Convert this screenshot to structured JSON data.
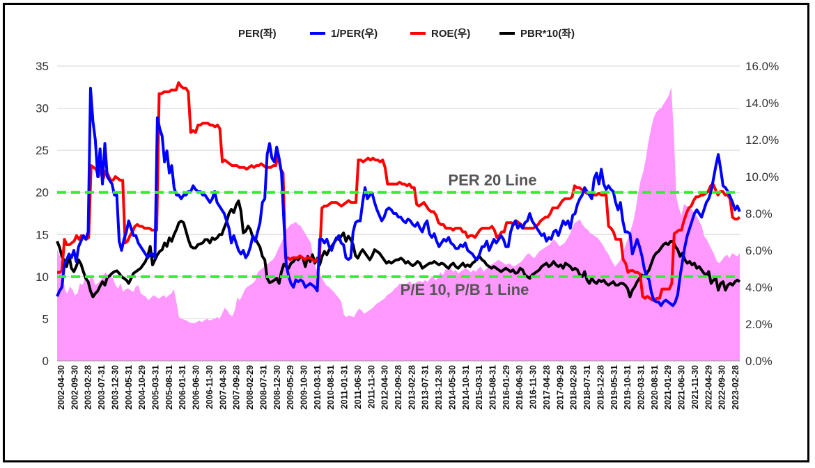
{
  "chart_data": {
    "type": "line",
    "legend_position": "top",
    "grid": "horizontal",
    "y_left": {
      "min": 0,
      "max": 35,
      "ticks": [
        0,
        5,
        10,
        15,
        20,
        25,
        30,
        35
      ]
    },
    "y_right": {
      "min": 0,
      "max": 16,
      "ticks": [
        "0.0%",
        "2.0%",
        "4.0%",
        "6.0%",
        "8.0%",
        "10.0%",
        "12.0%",
        "14.0%",
        "16.0%"
      ]
    },
    "x_tick_labels": [
      "2002-04-30",
      "2002-09-30",
      "2003-02-28",
      "2003-07-31",
      "2003-12-30",
      "2004-05-31",
      "2004-10-29",
      "2005-03-31",
      "2005-08-31",
      "2006-01-31",
      "2006-06-30",
      "2006-11-30",
      "2007-04-30",
      "2007-09-28",
      "2008-02-29",
      "2008-07-31",
      "2008-12-30",
      "2009-05-29",
      "2009-10-30",
      "2010-03-31",
      "2010-08-31",
      "2011-01-31",
      "2011-06-30",
      "2011-11-30",
      "2012-04-30",
      "2012-09-28",
      "2013-02-28",
      "2013-07-31",
      "2013-12-30",
      "2014-05-30",
      "2014-10-31",
      "2015-03-31",
      "2015-08-31",
      "2016-01-29",
      "2016-06-30",
      "2016-11-30",
      "2017-04-28",
      "2017-09-29",
      "2018-02-28",
      "2018-07-31",
      "2018-12-28",
      "2019-05-31",
      "2019-10-31",
      "2020-03-31",
      "2020-08-31",
      "2021-01-29",
      "2021-06-30",
      "2021-11-30",
      "2022-04-29",
      "2022-09-30",
      "2023-02-28"
    ],
    "series": [
      {
        "name": "PER(좌)",
        "axis": "left",
        "style": "area",
        "color": "#ff99ff",
        "values": [
          13.2,
          12.5,
          11.5,
          8.5,
          8.0,
          8.8,
          8.5,
          7.8,
          8.0,
          9.2,
          9.0,
          9.8,
          9.0,
          9.8,
          10.0,
          9.0,
          9.2,
          9.5,
          10.0,
          10.5,
          10.2,
          10.0,
          9.8,
          9.0,
          8.6,
          9.2,
          8.2,
          8.5,
          8.6,
          8.4,
          8.2,
          8.8,
          9.0,
          8.0,
          7.8,
          7.6,
          7.2,
          7.5,
          7.8,
          7.6,
          7.4,
          7.6,
          7.8,
          7.5,
          7.8,
          8.0,
          8.5,
          7.0,
          5.2,
          5.0,
          4.9,
          4.8,
          4.6,
          4.5,
          4.5,
          4.6,
          4.8,
          4.6,
          4.8,
          5.0,
          4.8,
          4.9,
          5.0,
          5.2,
          5.0,
          5.6,
          6.3,
          6.0,
          5.5,
          5.3,
          6.0,
          7.5,
          7.2,
          7.8,
          8.5,
          8.8,
          9.0,
          9.2,
          9.5,
          10.5,
          10.8,
          11.0,
          11.3,
          11.5,
          11.8,
          12.0,
          12.5,
          13.2,
          13.8,
          14.5,
          15.5,
          15.8,
          16.2,
          16.3,
          16.5,
          16.2,
          16.0,
          15.5,
          15.0,
          14.5,
          14.0,
          12.0,
          11.0,
          10.5,
          10.0,
          9.5,
          9.0,
          8.8,
          8.5,
          8.2,
          7.8,
          7.5,
          7.0,
          5.5,
          5.2,
          5.4,
          5.3,
          5.2,
          5.8,
          6.2,
          6.0,
          5.6,
          5.8,
          6.0,
          6.2,
          6.5,
          6.8,
          7.0,
          7.2,
          7.4,
          7.8,
          8.0,
          8.2,
          8.6,
          8.8,
          9.2,
          9.0,
          8.8,
          9.2,
          9.5,
          9.0,
          9.2,
          9.4,
          9.5,
          9.3,
          9.6,
          9.4,
          9.8,
          10.0,
          9.6,
          9.8,
          10.5,
          10.2,
          10.8,
          11.0,
          11.0,
          10.6,
          10.8,
          10.4,
          10.6,
          10.8,
          11.0,
          10.8,
          10.5,
          10.8,
          10.6,
          11.0,
          11.2,
          10.6,
          10.9,
          11.2,
          11.4,
          11.6,
          11.8,
          12.0,
          11.8,
          11.6,
          11.4,
          11.6,
          11.4,
          11.2,
          11.4,
          11.6,
          11.8,
          12.2,
          12.6,
          12.8,
          12.4,
          12.2,
          12.6,
          13.0,
          13.2,
          13.4,
          13.6,
          13.8,
          14.2,
          14.4,
          14.0,
          13.6,
          13.8,
          14.0,
          14.5,
          15.0,
          15.8,
          16.4,
          16.6,
          16.8,
          16.2,
          15.8,
          15.6,
          15.2,
          15.0,
          14.8,
          14.6,
          14.2,
          13.8,
          13.2,
          12.8,
          12.2,
          11.6,
          11.2,
          11.6,
          12.0,
          12.8,
          13.8,
          14.6,
          15.5,
          16.5,
          18.0,
          20.0,
          21.5,
          22.5,
          24.0,
          26.0,
          27.5,
          28.8,
          29.5,
          29.8,
          30.0,
          30.5,
          31.0,
          31.5,
          32.5,
          27.0,
          19.5,
          18.2,
          17.2,
          18.6,
          18.4,
          18.2,
          18.0,
          17.6,
          17.2,
          16.6,
          16.0,
          14.8,
          14.4,
          13.8,
          13.2,
          12.6,
          11.8,
          11.6,
          12.0,
          12.4,
          12.6,
          12.2,
          12.8,
          12.6,
          12.4,
          12.8
        ]
      },
      {
        "name": "1/PER(우)",
        "axis": "right",
        "style": "line",
        "color": "#0000ff",
        "values": [
          3.5,
          3.8,
          4.0,
          5.2,
          5.5,
          5.8,
          5.6,
          6.0,
          5.4,
          6.2,
          6.5,
          6.8,
          6.6,
          7.0,
          14.8,
          13.0,
          12.0,
          10.0,
          11.5,
          9.6,
          11.8,
          10.0,
          9.8,
          9.6,
          9.0,
          9.0,
          6.5,
          6.0,
          6.6,
          7.0,
          7.6,
          7.2,
          6.8,
          6.8,
          6.4,
          6.2,
          6.0,
          5.8,
          5.6,
          5.8,
          5.8,
          5.6,
          13.2,
          12.6,
          12.2,
          10.8,
          11.4,
          10.2,
          10.6,
          9.4,
          9.0,
          9.0,
          8.8,
          9.0,
          9.0,
          9.2,
          9.2,
          9.5,
          9.3,
          9.2,
          9.2,
          9.0,
          9.0,
          8.8,
          8.6,
          8.8,
          9.2,
          8.6,
          8.4,
          8.2,
          8.0,
          7.6,
          7.2,
          6.4,
          6.8,
          6.4,
          6.0,
          5.8,
          6.0,
          5.6,
          5.8,
          6.2,
          6.8,
          6.5,
          7.0,
          7.5,
          8.6,
          8.8,
          11.2,
          11.8,
          11.0,
          10.8,
          11.6,
          11.0,
          10.2,
          7.6,
          5.2,
          4.6,
          4.2,
          4.0,
          4.4,
          4.3,
          4.4,
          4.3,
          4.0,
          4.1,
          4.2,
          4.1,
          4.0,
          3.8,
          6.6,
          6.6,
          6.4,
          6.6,
          6.2,
          6.0,
          6.4,
          6.6,
          6.8,
          6.4,
          6.3,
          5.6,
          5.5,
          5.6,
          7.0,
          7.5,
          7.6,
          7.6,
          8.6,
          9.4,
          8.8,
          9.0,
          9.1,
          8.6,
          8.2,
          7.9,
          7.6,
          7.8,
          8.2,
          8.3,
          8.2,
          8.0,
          8.0,
          7.8,
          7.8,
          7.6,
          7.5,
          7.7,
          7.6,
          7.4,
          7.3,
          7.5,
          7.2,
          7.0,
          7.4,
          7.6,
          6.9,
          6.7,
          6.9,
          6.5,
          6.2,
          6.4,
          6.6,
          6.5,
          6.7,
          6.4,
          6.3,
          6.1,
          6.1,
          6.3,
          6.2,
          6.4,
          6.0,
          5.9,
          5.8,
          5.6,
          5.5,
          5.8,
          6.2,
          6.2,
          6.5,
          6.0,
          6.3,
          6.6,
          6.4,
          6.6,
          6.8,
          6.6,
          6.2,
          6.2,
          7.0,
          7.4,
          7.6,
          7.2,
          7.4,
          7.2,
          7.5,
          7.6,
          8.0,
          7.6,
          7.4,
          7.2,
          7.0,
          6.8,
          6.9,
          6.5,
          6.7,
          6.6,
          7.0,
          7.1,
          6.8,
          7.2,
          7.6,
          7.4,
          7.6,
          7.2,
          7.9,
          8.0,
          8.5,
          8.8,
          9.0,
          9.4,
          9.2,
          9.0,
          8.8,
          9.9,
          10.2,
          9.6,
          10.4,
          9.6,
          9.3,
          9.5,
          9.3,
          9.2,
          8.6,
          8.2,
          8.6,
          7.6,
          7.0,
          7.0,
          6.9,
          5.8,
          6.2,
          6.6,
          6.2,
          5.7,
          5.0,
          4.6,
          4.4,
          3.7,
          3.3,
          3.2,
          3.2,
          3.0,
          3.2,
          3.3,
          3.2,
          3.1,
          3.0,
          3.2,
          3.6,
          4.6,
          5.4,
          6.2,
          6.8,
          7.2,
          7.6,
          8.0,
          8.2,
          8.0,
          7.8,
          8.2,
          8.6,
          8.8,
          9.2,
          9.9,
          10.6,
          11.2,
          10.4,
          9.5,
          9.4,
          9.2,
          8.9,
          8.6,
          8.2,
          8.4,
          8.1
        ]
      },
      {
        "name": "ROE(우)",
        "axis": "right",
        "style": "line",
        "color": "#ff0000",
        "values": [
          4.8,
          4.8,
          4.9,
          6.6,
          6.3,
          6.3,
          6.4,
          6.5,
          6.8,
          6.6,
          6.8,
          6.7,
          6.6,
          6.7,
          10.6,
          10.5,
          10.4,
          10.0,
          10.4,
          9.9,
          10.3,
          10.1,
          9.8,
          9.8,
          10.0,
          9.9,
          9.8,
          9.8,
          6.4,
          6.5,
          6.8,
          7.0,
          7.3,
          7.4,
          7.3,
          7.3,
          7.2,
          7.2,
          7.2,
          7.1,
          7.1,
          7.1,
          14.5,
          14.5,
          14.6,
          14.6,
          14.6,
          14.7,
          14.7,
          14.7,
          15.1,
          14.9,
          14.8,
          14.8,
          14.6,
          12.4,
          12.5,
          12.4,
          12.8,
          12.8,
          12.9,
          12.9,
          12.9,
          12.8,
          12.8,
          12.7,
          12.8,
          12.6,
          10.8,
          10.9,
          10.8,
          10.7,
          10.6,
          10.6,
          10.6,
          10.5,
          10.5,
          10.5,
          10.4,
          10.5,
          10.6,
          10.5,
          10.6,
          10.6,
          10.7,
          10.6,
          10.5,
          10.5,
          10.5,
          10.6,
          10.6,
          11.2,
          10.4,
          10.2,
          5.6,
          5.6,
          5.5,
          5.6,
          5.6,
          5.6,
          5.7,
          5.6,
          5.5,
          5.6,
          5.6,
          5.5,
          5.4,
          5.5,
          5.6,
          8.3,
          8.4,
          8.4,
          8.5,
          8.6,
          8.6,
          8.6,
          8.5,
          8.4,
          8.5,
          8.6,
          8.7,
          8.6,
          8.6,
          8.6,
          10.9,
          10.9,
          10.8,
          10.9,
          11.0,
          10.9,
          11.0,
          10.9,
          10.9,
          10.8,
          10.9,
          10.5,
          9.6,
          9.6,
          9.6,
          9.6,
          9.6,
          9.7,
          9.6,
          9.6,
          9.5,
          9.6,
          9.4,
          9.4,
          8.5,
          8.4,
          8.5,
          8.6,
          8.4,
          8.2,
          8.1,
          8.1,
          7.9,
          7.5,
          7.4,
          7.4,
          7.2,
          7.2,
          7.2,
          7.1,
          7.2,
          7.2,
          7.2,
          7.0,
          7.0,
          6.7,
          6.8,
          6.8,
          6.7,
          6.9,
          7.1,
          7.2,
          7.2,
          7.2,
          7.2,
          7.3,
          7.1,
          6.7,
          6.8,
          7.0,
          7.0,
          7.5,
          7.5,
          7.5,
          7.4,
          7.6,
          7.5,
          7.4,
          7.2,
          7.2,
          7.2,
          7.2,
          7.2,
          7.3,
          7.4,
          7.6,
          7.7,
          7.8,
          7.8,
          8.0,
          8.3,
          8.3,
          8.3,
          8.5,
          8.7,
          8.8,
          8.8,
          8.8,
          8.9,
          9.5,
          9.4,
          9.4,
          9.3,
          9.2,
          9.1,
          9.1,
          9.1,
          9.0,
          9.0,
          9.1,
          9.0,
          9.0,
          9.0,
          7.3,
          7.2,
          7.0,
          6.6,
          6.6,
          6.6,
          5.5,
          5.3,
          4.8,
          4.9,
          4.9,
          4.8,
          4.8,
          4.7,
          3.5,
          3.4,
          3.5,
          3.4,
          3.3,
          3.3,
          3.4,
          3.4,
          3.9,
          3.9,
          3.9,
          3.9,
          4.2,
          6.9,
          7.0,
          7.1,
          7.1,
          7.6,
          8.0,
          8.3,
          8.4,
          8.7,
          8.9,
          8.9,
          9.0,
          9.0,
          9.1,
          9.2,
          9.5,
          9.6,
          9.3,
          9.0,
          9.2,
          9.2,
          9.0,
          9.0,
          8.8,
          7.8,
          7.7,
          7.7,
          7.8
        ]
      },
      {
        "name": "PBR*10(좌)",
        "axis": "left",
        "style": "line",
        "color": "#000000",
        "values": [
          14.2,
          13.5,
          12.4,
          11.9,
          11.2,
          12.5,
          11.0,
          10.6,
          11.2,
          12.0,
          11.5,
          10.6,
          9.8,
          9.4,
          8.3,
          7.6,
          8.0,
          8.3,
          8.9,
          9.4,
          9.0,
          9.9,
          10.1,
          10.4,
          10.6,
          10.7,
          10.4,
          10.0,
          9.8,
          9.6,
          9.2,
          9.8,
          10.4,
          10.6,
          10.8,
          11.0,
          11.4,
          11.8,
          12.5,
          13.6,
          11.4,
          12.0,
          12.6,
          13.0,
          13.2,
          14.0,
          13.6,
          14.6,
          14.2,
          15.0,
          15.6,
          16.4,
          16.6,
          16.4,
          15.4,
          14.4,
          13.6,
          13.4,
          13.4,
          13.8,
          13.9,
          14.0,
          14.4,
          14.4,
          14.0,
          14.6,
          14.4,
          14.6,
          15.0,
          15.0,
          15.8,
          16.5,
          17.5,
          18.0,
          17.6,
          18.5,
          19.0,
          17.8,
          15.2,
          15.4,
          16.0,
          15.6,
          14.6,
          14.5,
          14.0,
          13.5,
          12.4,
          12.0,
          9.8,
          9.3,
          9.4,
          9.6,
          9.8,
          9.2,
          10.6,
          11.5,
          11.2,
          11.0,
          11.6,
          11.8,
          12.2,
          12.0,
          12.4,
          12.2,
          11.2,
          12.4,
          11.8,
          12.6,
          11.6,
          12.2,
          11.4,
          12.4,
          13.0,
          12.6,
          13.2,
          13.6,
          14.0,
          14.6,
          14.4,
          14.8,
          15.2,
          14.2,
          14.8,
          14.4,
          13.8,
          12.5,
          12.2,
          12.8,
          13.2,
          12.8,
          12.4,
          12.0,
          12.5,
          13.2,
          13.0,
          12.8,
          12.4,
          12.0,
          11.6,
          11.8,
          11.6,
          11.8,
          12.0,
          12.0,
          12.2,
          12.0,
          11.6,
          11.8,
          11.5,
          11.3,
          11.5,
          11.8,
          11.6,
          11.0,
          11.2,
          11.4,
          11.6,
          11.6,
          11.8,
          11.6,
          11.4,
          11.6,
          11.5,
          11.2,
          11.0,
          11.4,
          11.6,
          11.2,
          11.0,
          11.3,
          11.6,
          11.2,
          11.4,
          11.2,
          11.6,
          11.8,
          12.2,
          12.4,
          12.0,
          11.8,
          11.4,
          11.2,
          11.0,
          11.2,
          11.0,
          10.8,
          10.6,
          10.8,
          11.0,
          10.8,
          10.6,
          10.8,
          10.4,
          10.5,
          11.0,
          10.8,
          10.2,
          10.0,
          9.8,
          10.2,
          10.4,
          10.6,
          10.8,
          11.2,
          11.4,
          11.6,
          11.2,
          11.4,
          11.8,
          11.4,
          11.2,
          11.4,
          11.0,
          11.6,
          11.4,
          11.2,
          10.8,
          11.0,
          10.8,
          10.2,
          10.0,
          10.6,
          9.6,
          9.2,
          9.8,
          9.4,
          9.2,
          9.6,
          9.4,
          9.6,
          9.2,
          9.0,
          9.2,
          9.4,
          9.0,
          9.0,
          9.2,
          9.2,
          9.0,
          8.6,
          7.6,
          8.4,
          8.8,
          9.4,
          9.8,
          10.2,
          10.0,
          10.4,
          10.8,
          11.6,
          12.4,
          12.8,
          13.0,
          13.4,
          13.8,
          14.0,
          13.8,
          14.2,
          14.2,
          13.6,
          13.2,
          12.4,
          12.8,
          12.0,
          11.6,
          11.8,
          11.4,
          11.6,
          11.0,
          11.2,
          10.8,
          10.4,
          10.2,
          10.6,
          9.2,
          9.6,
          9.8,
          8.4,
          9.2,
          9.4,
          8.4,
          9.0,
          9.2,
          9.0,
          9.4,
          9.6,
          9.4
        ]
      }
    ],
    "reference_lines": [
      {
        "axis": "left",
        "value": 20,
        "label": "PER 20 Line",
        "color": "#33ee33"
      },
      {
        "axis": "left",
        "value": 10,
        "label": "P/E 10, P/B 1  Line",
        "color": "#33ee33"
      }
    ]
  }
}
